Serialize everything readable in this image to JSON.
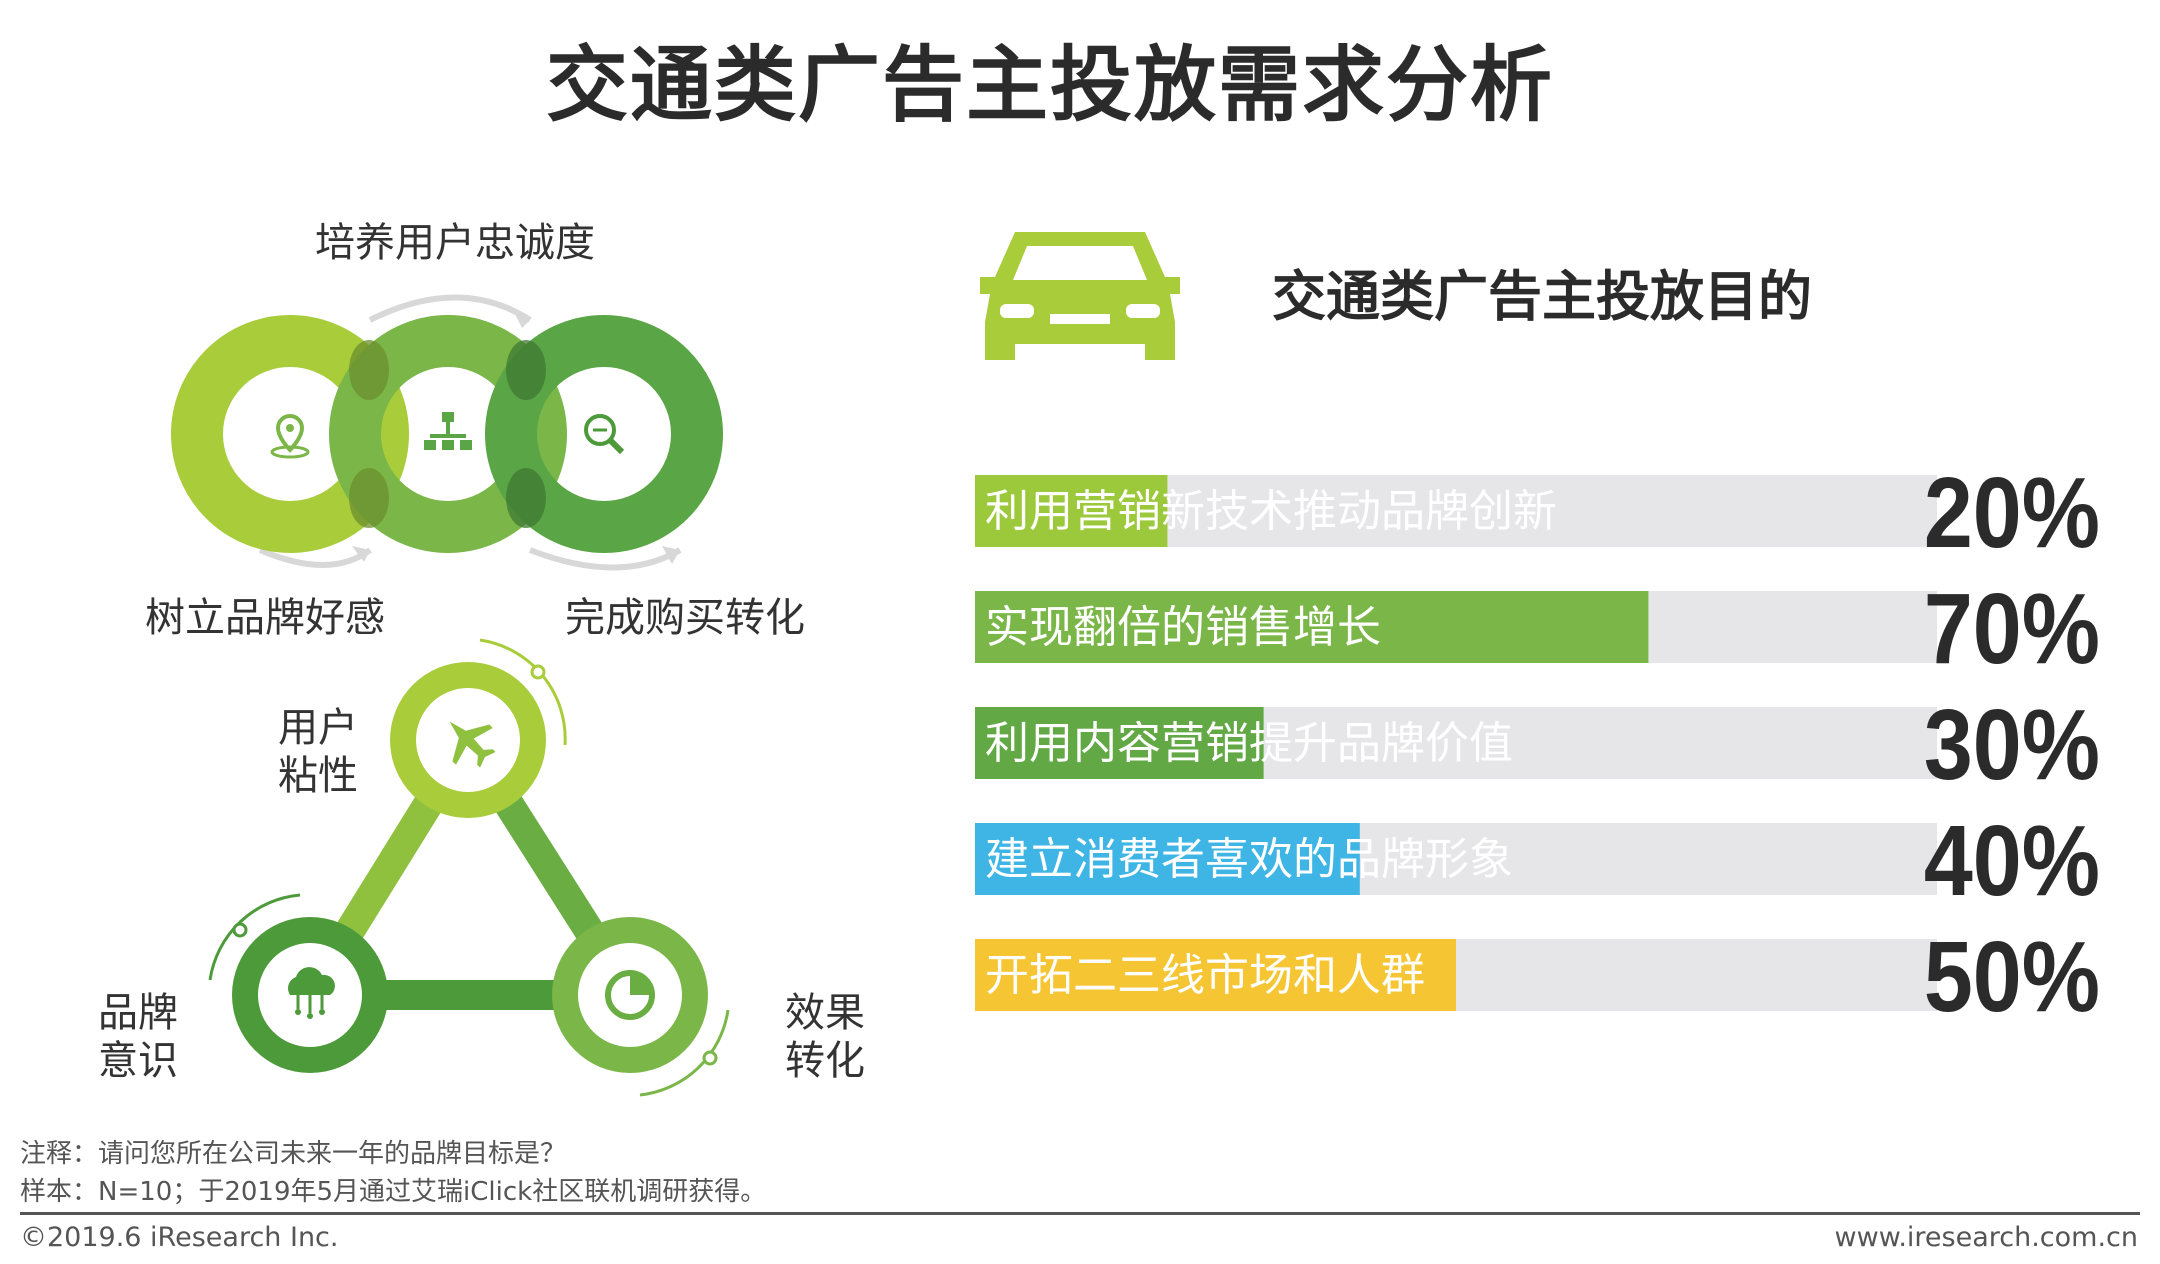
{
  "title": "交通类广告主投放需求分析",
  "left_figure": {
    "circles_caption_top": "培养用户忠诚度",
    "circles_caption_left": "树立品牌好感",
    "circles_caption_right": "完成购买转化",
    "triangle_label_top": [
      "用户",
      "粘性"
    ],
    "triangle_label_left": [
      "品牌",
      "意识"
    ],
    "triangle_label_right": [
      "效果",
      "转化"
    ],
    "icons": [
      "location-pin-icon",
      "hierarchy-icon",
      "magnifier-icon",
      "airplane-icon",
      "cloud-network-icon",
      "pie-chart-icon"
    ]
  },
  "chart_data": {
    "type": "bar",
    "orientation": "horizontal",
    "title": "交通类广告主投放目的",
    "categories": [
      "利用营销新技术推动品牌创新",
      "实现翻倍的销售增长",
      "利用内容营销提升品牌价值",
      "建立消费者喜欢的品牌形象",
      "开拓二三线市场和人群"
    ],
    "values": [
      20,
      70,
      30,
      40,
      50
    ],
    "value_labels": [
      "20%",
      "70%",
      "30%",
      "40%",
      "50%"
    ],
    "xlim": [
      0,
      100
    ],
    "colors": [
      "#9cc93b",
      "#7ab648",
      "#62a845",
      "#3fb5e6",
      "#f6c533"
    ],
    "track_color": "#e6e6e8",
    "legend": "none",
    "grid": false
  },
  "colors": {
    "green_light": "#a8cc3a",
    "green_mid": "#7ab648",
    "green_dark": "#4c9a3a"
  },
  "footer": {
    "note": "注释：请问您所在公司未来一年的品牌目标是？",
    "sample": "样本：N=10；于2019年5月通过艾瑞iClick社区联机调研获得。",
    "copyright": "©2019.6 iResearch Inc.",
    "website": "www.iresearch.com.cn"
  }
}
